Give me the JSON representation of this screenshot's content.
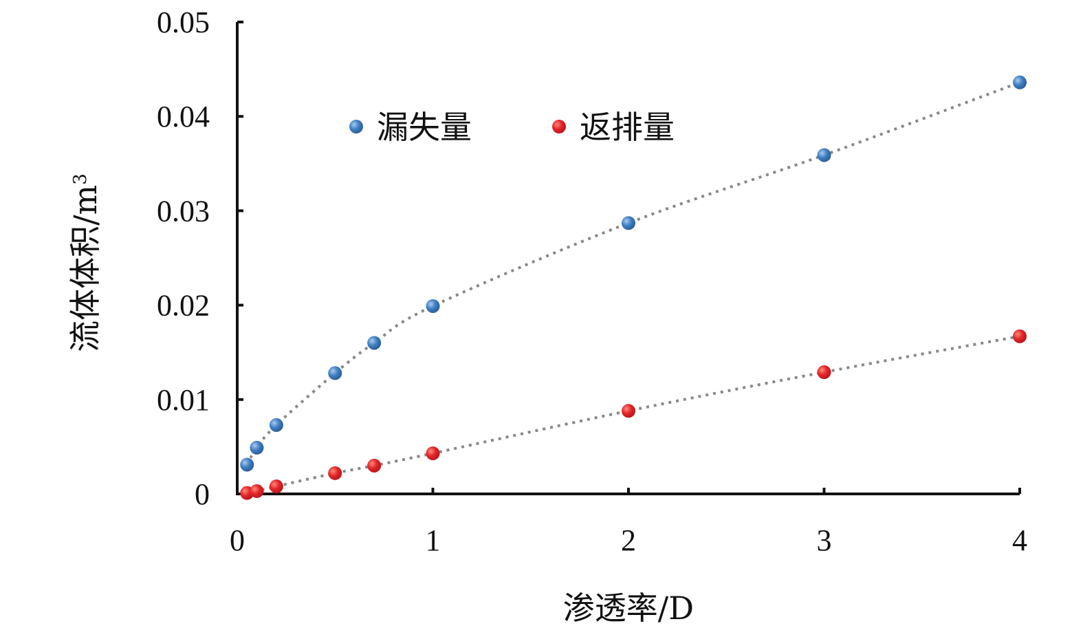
{
  "chart_data": {
    "type": "scatter",
    "title": "",
    "xlabel": "渗透率/D",
    "ylabel": "流体体积/m",
    "ylabel_sup": "3",
    "xlim": [
      0,
      4
    ],
    "ylim": [
      0,
      0.05
    ],
    "xticks": [
      "0",
      "1",
      "2",
      "3",
      "4"
    ],
    "yticks": [
      "0",
      "0.01",
      "0.02",
      "0.03",
      "0.04",
      "0.05"
    ],
    "legend_position": "top-left",
    "trendlines": true,
    "series": [
      {
        "name": "漏失量",
        "color": "#3f7fc2",
        "x": [
          0.05,
          0.1,
          0.2,
          0.5,
          0.7,
          1,
          2,
          3,
          4
        ],
        "y": [
          0.0031,
          0.0049,
          0.0073,
          0.0128,
          0.016,
          0.0199,
          0.0287,
          0.0359,
          0.0436
        ]
      },
      {
        "name": "返排量",
        "color": "#e3262a",
        "x": [
          0.05,
          0.1,
          0.2,
          0.5,
          0.7,
          1,
          2,
          3,
          4
        ],
        "y": [
          0.0001,
          0.0003,
          0.0008,
          0.0022,
          0.003,
          0.0043,
          0.0088,
          0.0129,
          0.0167
        ]
      }
    ]
  }
}
